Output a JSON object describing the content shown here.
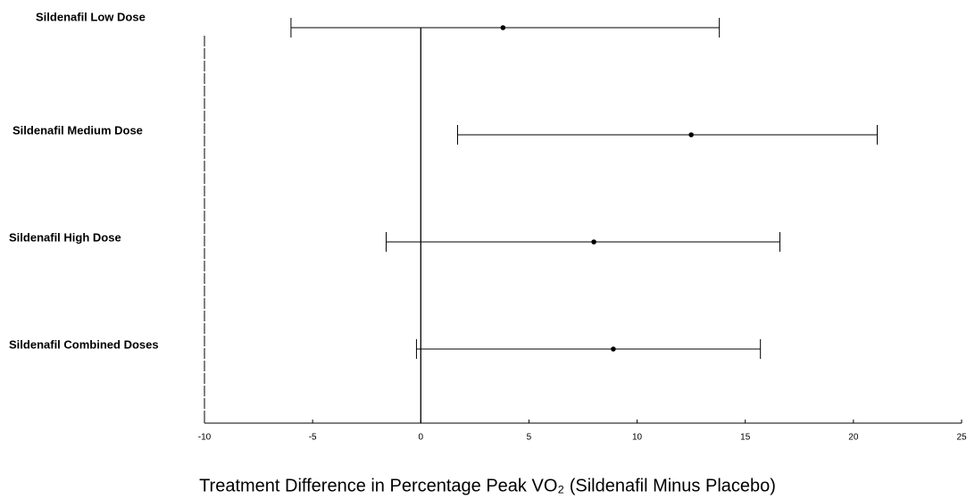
{
  "chart_data": {
    "type": "forest",
    "x_label": "Treatment Difference in Percentage Peak VO₂ (Sildenafil Minus Placebo)",
    "categories": [
      "Sildenafil Low Dose",
      "Sildenafil Medium Dose",
      "Sildenafil High Dose",
      "Sildenafil Combined Doses"
    ],
    "series": [
      {
        "color": "#000000",
        "values": [
          3.8,
          12.5,
          8.0,
          8.9
        ],
        "lower": [
          -6.0,
          1.7,
          -1.6,
          -0.2
        ],
        "upper": [
          13.8,
          21.1,
          16.6,
          15.7
        ]
      }
    ],
    "xlim": [
      -10,
      25
    ],
    "xticks": [
      -10,
      -5,
      0,
      5,
      10,
      15,
      20,
      25
    ],
    "reference_line": 0
  }
}
